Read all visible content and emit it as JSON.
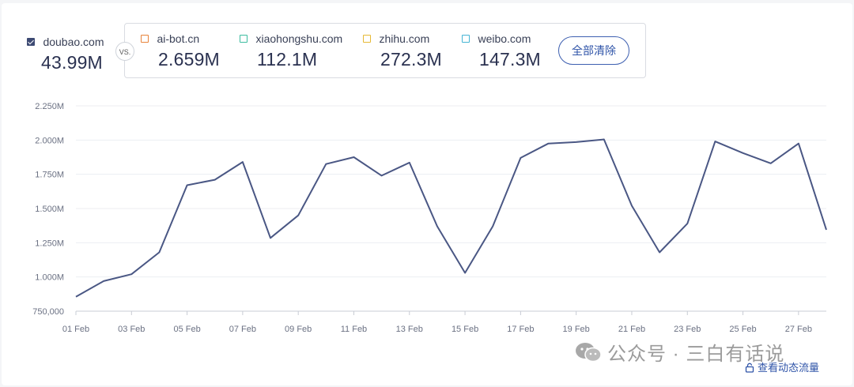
{
  "primary": {
    "site": "doubao.com",
    "value": "43.99M",
    "color": "#3d4a73"
  },
  "vs_label": "VS.",
  "comparisons": [
    {
      "site": "ai-bot.cn",
      "value": "2.659M",
      "color": "#e8833a"
    },
    {
      "site": "xiaohongshu.com",
      "value": "112.1M",
      "color": "#3cbca0"
    },
    {
      "site": "zhihu.com",
      "value": "272.3M",
      "color": "#e6b935"
    },
    {
      "site": "weibo.com",
      "value": "147.3M",
      "color": "#45b4d4"
    }
  ],
  "clear_all_label": "全部清除",
  "chart_data": {
    "type": "line",
    "series": [
      {
        "name": "doubao.com",
        "color": "#4a5784",
        "values": [
          855000,
          970000,
          1020000,
          1180000,
          1670000,
          1710000,
          1840000,
          1285000,
          1450000,
          1825000,
          1875000,
          1740000,
          1835000,
          1370000,
          1030000,
          1370000,
          1870000,
          1975000,
          1985000,
          2005000,
          1520000,
          1180000,
          1390000,
          1990000,
          1905000,
          1830000,
          1975000,
          1345000
        ]
      }
    ],
    "x": [
      "01 Feb",
      "02 Feb",
      "03 Feb",
      "04 Feb",
      "05 Feb",
      "06 Feb",
      "07 Feb",
      "08 Feb",
      "09 Feb",
      "10 Feb",
      "11 Feb",
      "12 Feb",
      "13 Feb",
      "14 Feb",
      "15 Feb",
      "16 Feb",
      "17 Feb",
      "18 Feb",
      "19 Feb",
      "20 Feb",
      "21 Feb",
      "22 Feb",
      "23 Feb",
      "24 Feb",
      "25 Feb",
      "26 Feb",
      "27 Feb",
      "28 Feb"
    ],
    "x_tick_labels": [
      "01 Feb",
      "03 Feb",
      "05 Feb",
      "07 Feb",
      "09 Feb",
      "11 Feb",
      "13 Feb",
      "15 Feb",
      "17 Feb",
      "19 Feb",
      "21 Feb",
      "23 Feb",
      "25 Feb",
      "27 Feb"
    ],
    "y_ticks": [
      750000,
      1000000,
      1250000,
      1500000,
      1750000,
      2000000,
      2250000
    ],
    "y_tick_labels": [
      "750,000",
      "1.000M",
      "1.250M",
      "1.500M",
      "1.750M",
      "2.000M",
      "2.250M"
    ],
    "ylim": [
      750000,
      2250000
    ],
    "grid": true,
    "title": "",
    "xlabel": "",
    "ylabel": ""
  },
  "watermark_text": "公众号 · 三白有话说",
  "dynamic_traffic_link": "查看动态流量"
}
